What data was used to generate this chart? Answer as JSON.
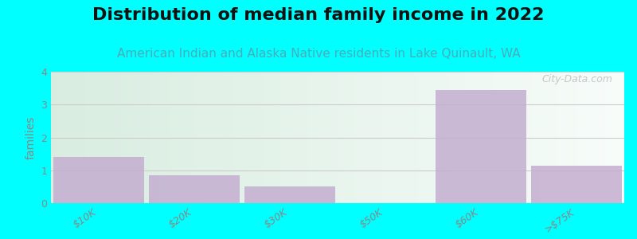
{
  "title": "Distribution of median family income in 2022",
  "subtitle": "American Indian and Alaska Native residents in Lake Quinault, WA",
  "categories": [
    "$10K",
    "$20K",
    "$30K",
    "$50K",
    "$60K",
    ">$75K"
  ],
  "values": [
    1.4,
    0.85,
    0.5,
    0.0,
    3.45,
    1.15
  ],
  "bar_color": "#c4aed0",
  "background_color": "#00ffff",
  "plot_bg_top_left": "#d8ecd0",
  "plot_bg_bottom_right": "#f8f8f0",
  "ylabel": "families",
  "ylim": [
    0,
    4
  ],
  "yticks": [
    0,
    1,
    2,
    3,
    4
  ],
  "watermark": "City-Data.com",
  "title_fontsize": 16,
  "subtitle_fontsize": 11,
  "subtitle_color": "#4aacbb",
  "ylabel_color": "#888888",
  "tick_color": "#888888",
  "grid_color": "#cccccc"
}
